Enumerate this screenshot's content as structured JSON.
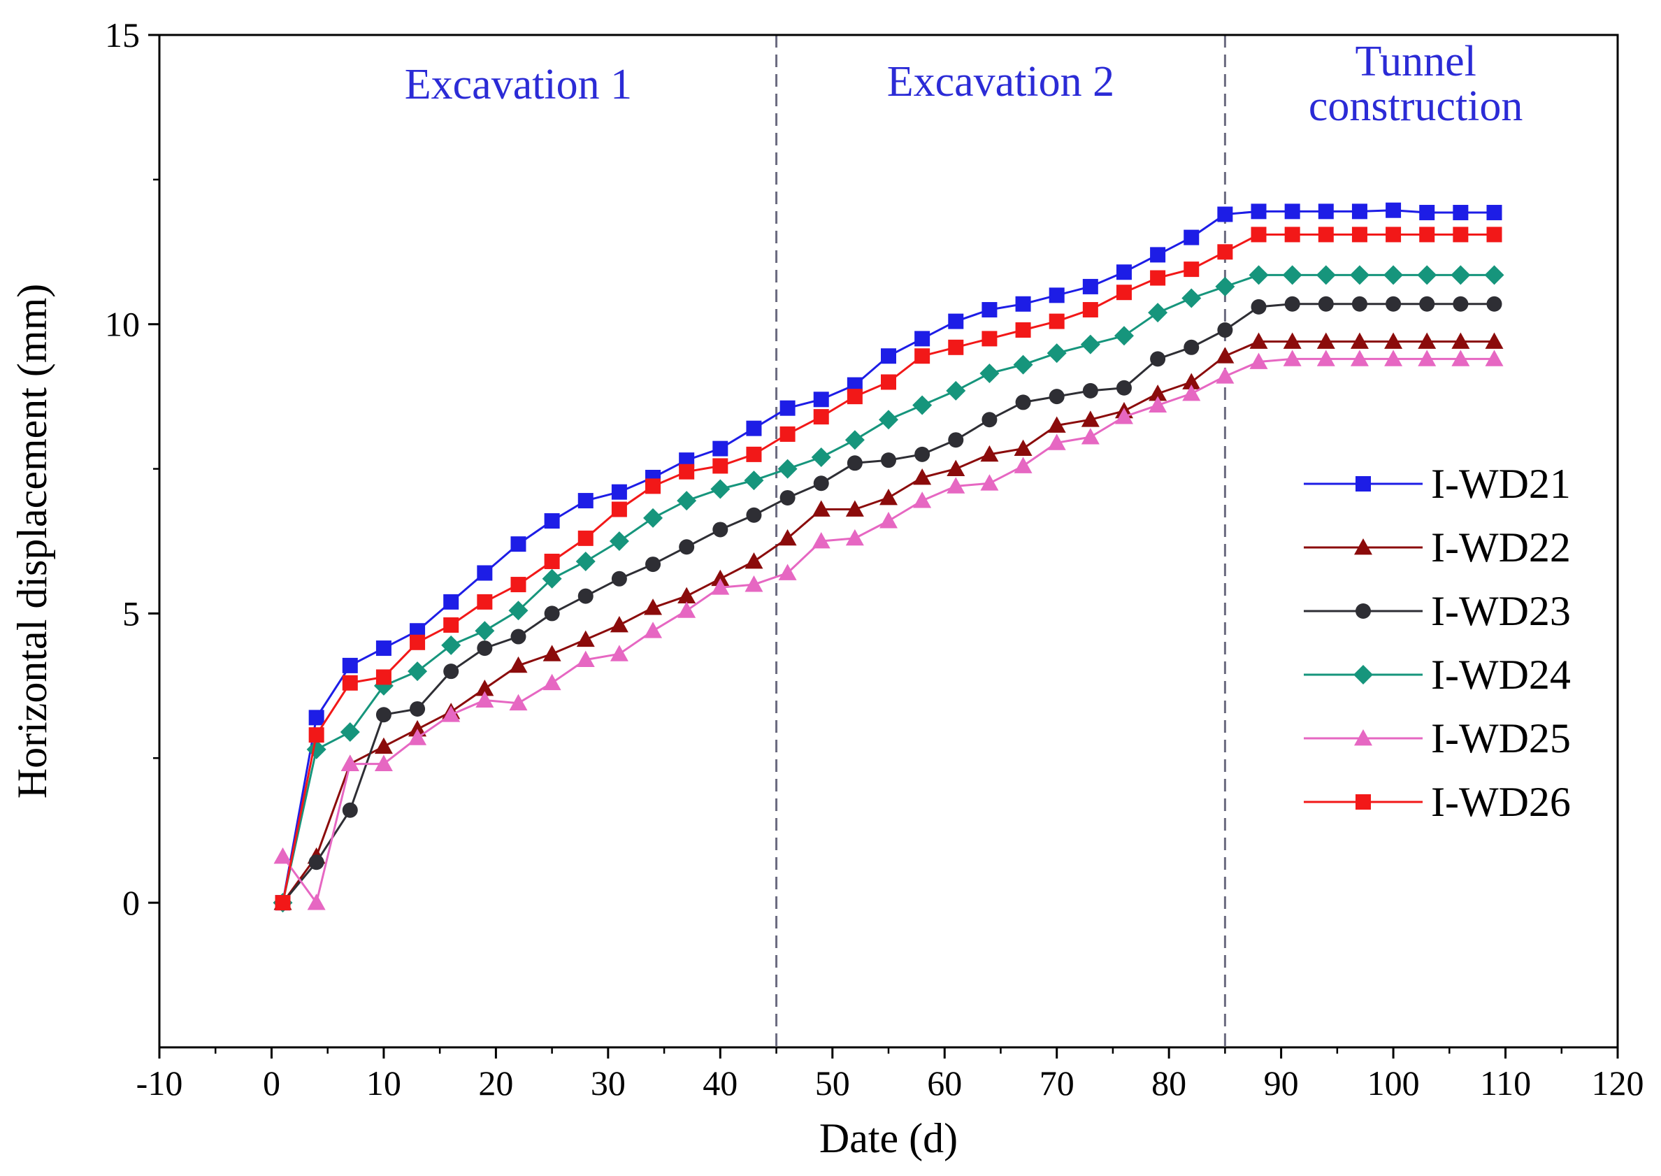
{
  "chart_data": {
    "type": "line",
    "title": "",
    "xlabel": "Date (d)",
    "ylabel": "Horizontal displacement (mm)",
    "xlim": [
      -10,
      120
    ],
    "ylim": [
      -2.5,
      15
    ],
    "xticks": [
      -10,
      0,
      10,
      20,
      30,
      40,
      50,
      60,
      70,
      80,
      90,
      100,
      110,
      120
    ],
    "yticks": [
      0,
      5,
      10,
      15
    ],
    "phase_boundaries": [
      45,
      85
    ],
    "phase_labels": [
      {
        "lines": [
          "Excavation 1"
        ],
        "x": 22,
        "y": 13.9
      },
      {
        "lines": [
          "Excavation 2"
        ],
        "x": 65,
        "y": 13.95
      },
      {
        "lines": [
          "Tunnel",
          "construction"
        ],
        "x": 102,
        "y": 14.3
      }
    ],
    "phase_label_color": "#2b2bd6",
    "boundary_color": "#6b6b80",
    "legend_position": "center-right",
    "series": [
      {
        "name": "I-WD21",
        "color": "#1d1de6",
        "marker": "square",
        "x": [
          1,
          4,
          7,
          10,
          13,
          16,
          19,
          22,
          25,
          28,
          31,
          34,
          37,
          40,
          43,
          46,
          49,
          52,
          55,
          58,
          61,
          64,
          67,
          70,
          73,
          76,
          79,
          82,
          85,
          88,
          91,
          94,
          97,
          100,
          103,
          106,
          109
        ],
        "y": [
          0,
          3.2,
          4.1,
          4.4,
          4.7,
          5.2,
          5.7,
          6.2,
          6.6,
          6.95,
          7.1,
          7.35,
          7.65,
          7.85,
          8.2,
          8.55,
          8.7,
          8.95,
          9.45,
          9.75,
          10.05,
          10.25,
          10.35,
          10.5,
          10.65,
          10.9,
          11.2,
          11.5,
          11.9,
          11.95,
          11.95,
          11.95,
          11.95,
          11.97,
          11.93,
          11.93,
          11.93
        ]
      },
      {
        "name": "I-WD22",
        "color": "#8b0b0b",
        "marker": "triangle",
        "x": [
          1,
          4,
          7,
          10,
          13,
          16,
          19,
          22,
          25,
          28,
          31,
          34,
          37,
          40,
          43,
          46,
          49,
          52,
          55,
          58,
          61,
          64,
          67,
          70,
          73,
          76,
          79,
          82,
          85,
          88,
          91,
          94,
          97,
          100,
          103,
          106,
          109
        ],
        "y": [
          0,
          0.8,
          2.4,
          2.7,
          3.0,
          3.3,
          3.7,
          4.1,
          4.3,
          4.55,
          4.8,
          5.1,
          5.3,
          5.6,
          5.9,
          6.3,
          6.8,
          6.8,
          7.0,
          7.35,
          7.5,
          7.75,
          7.85,
          8.25,
          8.35,
          8.5,
          8.8,
          9.0,
          9.45,
          9.7,
          9.7,
          9.7,
          9.7,
          9.7,
          9.7,
          9.7,
          9.7
        ]
      },
      {
        "name": "I-WD23",
        "color": "#2e2e34",
        "marker": "circle",
        "x": [
          1,
          4,
          7,
          10,
          13,
          16,
          19,
          22,
          25,
          28,
          31,
          34,
          37,
          40,
          43,
          46,
          49,
          52,
          55,
          58,
          61,
          64,
          67,
          70,
          73,
          76,
          79,
          82,
          85,
          88,
          91,
          94,
          97,
          100,
          103,
          106,
          109
        ],
        "y": [
          0,
          0.7,
          1.6,
          3.25,
          3.35,
          4.0,
          4.4,
          4.6,
          5.0,
          5.3,
          5.6,
          5.85,
          6.15,
          6.45,
          6.7,
          7.0,
          7.25,
          7.6,
          7.65,
          7.75,
          8.0,
          8.35,
          8.65,
          8.75,
          8.85,
          8.9,
          9.4,
          9.6,
          9.9,
          10.3,
          10.35,
          10.35,
          10.35,
          10.35,
          10.35,
          10.35,
          10.35
        ]
      },
      {
        "name": "I-WD24",
        "color": "#16957c",
        "marker": "diamond",
        "x": [
          1,
          4,
          7,
          10,
          13,
          16,
          19,
          22,
          25,
          28,
          31,
          34,
          37,
          40,
          43,
          46,
          49,
          52,
          55,
          58,
          61,
          64,
          67,
          70,
          73,
          76,
          79,
          82,
          85,
          88,
          91,
          94,
          97,
          100,
          103,
          106,
          109
        ],
        "y": [
          0,
          2.65,
          2.95,
          3.75,
          4.0,
          4.45,
          4.7,
          5.05,
          5.6,
          5.9,
          6.25,
          6.65,
          6.95,
          7.15,
          7.3,
          7.5,
          7.7,
          8.0,
          8.35,
          8.6,
          8.85,
          9.15,
          9.3,
          9.5,
          9.65,
          9.8,
          10.2,
          10.45,
          10.65,
          10.85,
          10.85,
          10.85,
          10.85,
          10.85,
          10.85,
          10.85,
          10.85
        ]
      },
      {
        "name": "I-WD25",
        "color": "#e667c2",
        "marker": "triangle",
        "x": [
          1,
          4,
          7,
          10,
          13,
          16,
          19,
          22,
          25,
          28,
          31,
          34,
          37,
          40,
          43,
          46,
          49,
          52,
          55,
          58,
          61,
          64,
          67,
          70,
          73,
          76,
          79,
          82,
          85,
          88,
          91,
          94,
          97,
          100,
          103,
          106,
          109
        ],
        "y": [
          0.8,
          0,
          2.4,
          2.4,
          2.85,
          3.25,
          3.5,
          3.45,
          3.8,
          4.2,
          4.3,
          4.7,
          5.05,
          5.45,
          5.5,
          5.7,
          6.25,
          6.3,
          6.6,
          6.95,
          7.2,
          7.25,
          7.55,
          7.95,
          8.05,
          8.4,
          8.6,
          8.8,
          9.1,
          9.35,
          9.4,
          9.4,
          9.4,
          9.4,
          9.4,
          9.4,
          9.4
        ]
      },
      {
        "name": "I-WD26",
        "color": "#f21818",
        "marker": "square",
        "x": [
          1,
          4,
          7,
          10,
          13,
          16,
          19,
          22,
          25,
          28,
          31,
          34,
          37,
          40,
          43,
          46,
          49,
          52,
          55,
          58,
          61,
          64,
          67,
          70,
          73,
          76,
          79,
          82,
          85,
          88,
          91,
          94,
          97,
          100,
          103,
          106,
          109
        ],
        "y": [
          0,
          2.9,
          3.8,
          3.9,
          4.5,
          4.8,
          5.2,
          5.5,
          5.9,
          6.3,
          6.8,
          7.2,
          7.45,
          7.55,
          7.75,
          8.1,
          8.4,
          8.75,
          9.0,
          9.45,
          9.6,
          9.75,
          9.9,
          10.05,
          10.25,
          10.55,
          10.8,
          10.95,
          11.25,
          11.55,
          11.55,
          11.55,
          11.55,
          11.55,
          11.55,
          11.55,
          11.55
        ]
      }
    ]
  }
}
